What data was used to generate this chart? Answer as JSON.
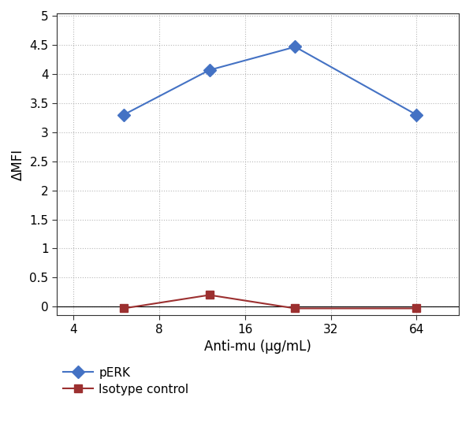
{
  "x_values": [
    6,
    12,
    24,
    64
  ],
  "pERK_values": [
    3.3,
    4.07,
    4.47,
    3.3
  ],
  "isotype_values": [
    -0.03,
    0.2,
    -0.03,
    -0.03
  ],
  "x_ticks": [
    4,
    8,
    16,
    32,
    64
  ],
  "x_tick_labels": [
    "4",
    "8",
    "16",
    "32",
    "64"
  ],
  "y_ticks": [
    0,
    0.5,
    1,
    1.5,
    2,
    2.5,
    3,
    3.5,
    4,
    4.5,
    5
  ],
  "y_tick_labels": [
    "0",
    "0.5",
    "1",
    "1.5",
    "2",
    "2.5",
    "3",
    "3.5",
    "4",
    "4.5",
    "5"
  ],
  "ylim": [
    -0.15,
    5.05
  ],
  "xlim_log": [
    3.5,
    90
  ],
  "xlabel": "Anti-mu (μg/mL)",
  "ylabel": "ΔMFI",
  "pERK_color": "#4472C4",
  "isotype_color": "#9C3030",
  "pERK_label": "pERK",
  "isotype_label": "Isotype control",
  "bg_color": "#ffffff",
  "grid_color": "#999999",
  "grid_alpha": 0.7,
  "marker_pERK": "D",
  "marker_isotype": "s",
  "marker_size_pERK": 8,
  "marker_size_iso": 7,
  "linewidth": 1.5,
  "spine_color": "#333333",
  "tick_fontsize": 11,
  "label_fontsize": 12,
  "legend_fontsize": 11
}
